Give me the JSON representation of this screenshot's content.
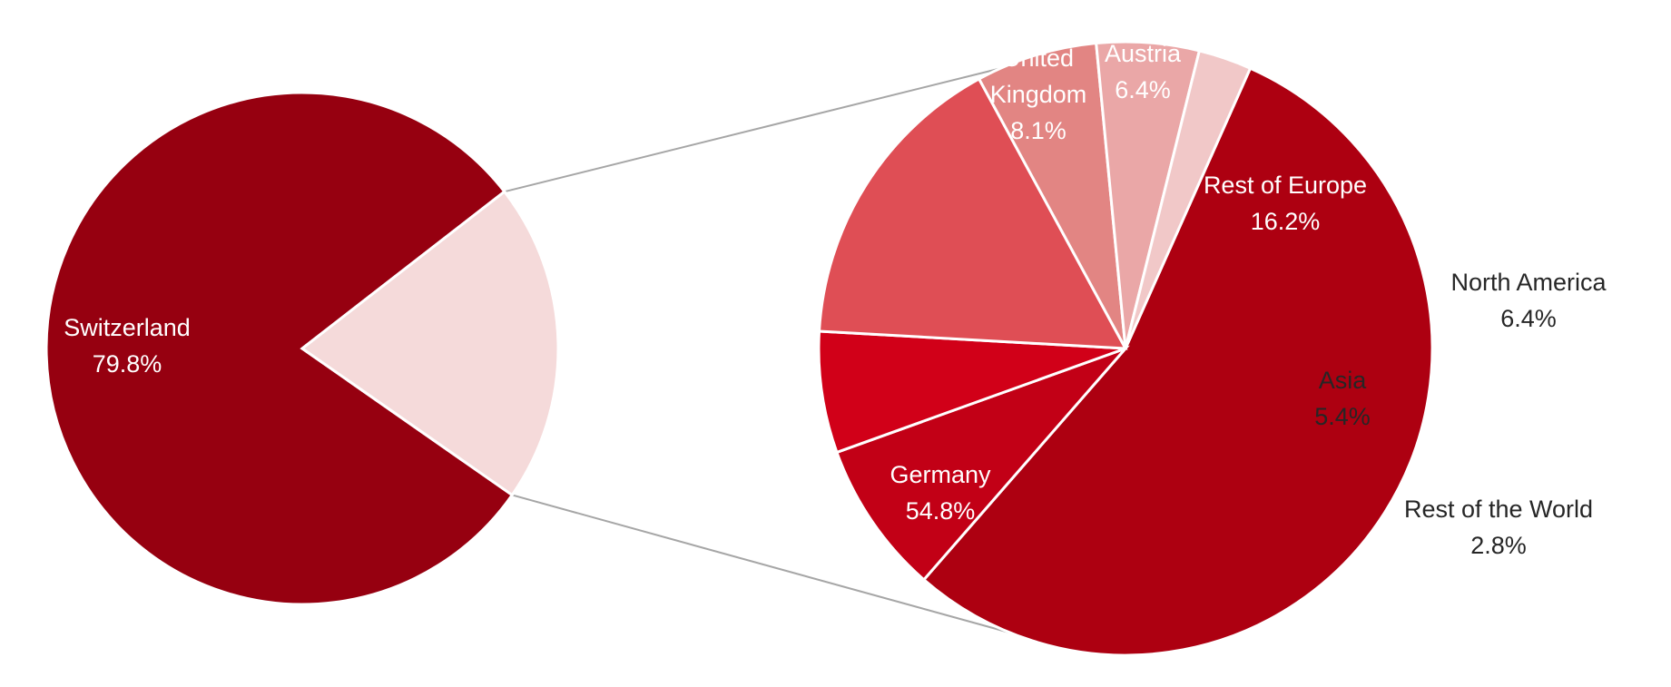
{
  "chart_data": {
    "type": "pie",
    "title": "",
    "main_pie": {
      "slices": [
        {
          "name": "Switzerland",
          "label": "Switzerland",
          "value_label": "79.8%",
          "value": 79.8,
          "color": "#960010"
        },
        {
          "name": "Other countries",
          "label": "",
          "value_label": "",
          "value": 20.2,
          "color": "#f5dada"
        }
      ]
    },
    "detail_pie": {
      "slices": [
        {
          "name": "Germany",
          "label": "Germany",
          "value_label": "54.8%",
          "value": 54.8,
          "color": "#ad0011"
        },
        {
          "name": "United Kingdom",
          "label": "United\nKingdom",
          "value_label": "8.1%",
          "value": 8.1,
          "color": "#c20016"
        },
        {
          "name": "Austria",
          "label": "Austria",
          "value_label": "6.4%",
          "value": 6.4,
          "color": "#d10018"
        },
        {
          "name": "Rest of Europe",
          "label": "Rest of Europe",
          "value_label": "16.2%",
          "value": 16.2,
          "color": "#df4e55"
        },
        {
          "name": "North America",
          "label": "North America",
          "value_label": "6.4%",
          "value": 6.4,
          "color": "#e28583"
        },
        {
          "name": "Asia",
          "label": "Asia",
          "value_label": "5.4%",
          "value": 5.4,
          "color": "#eaa7a7"
        },
        {
          "name": "Rest of the World",
          "label": "Rest of the World",
          "value_label": "2.8%",
          "value": 2.8,
          "color": "#f1c8c8"
        }
      ]
    },
    "legend": "none",
    "connector_color": "#a6a6a6"
  }
}
